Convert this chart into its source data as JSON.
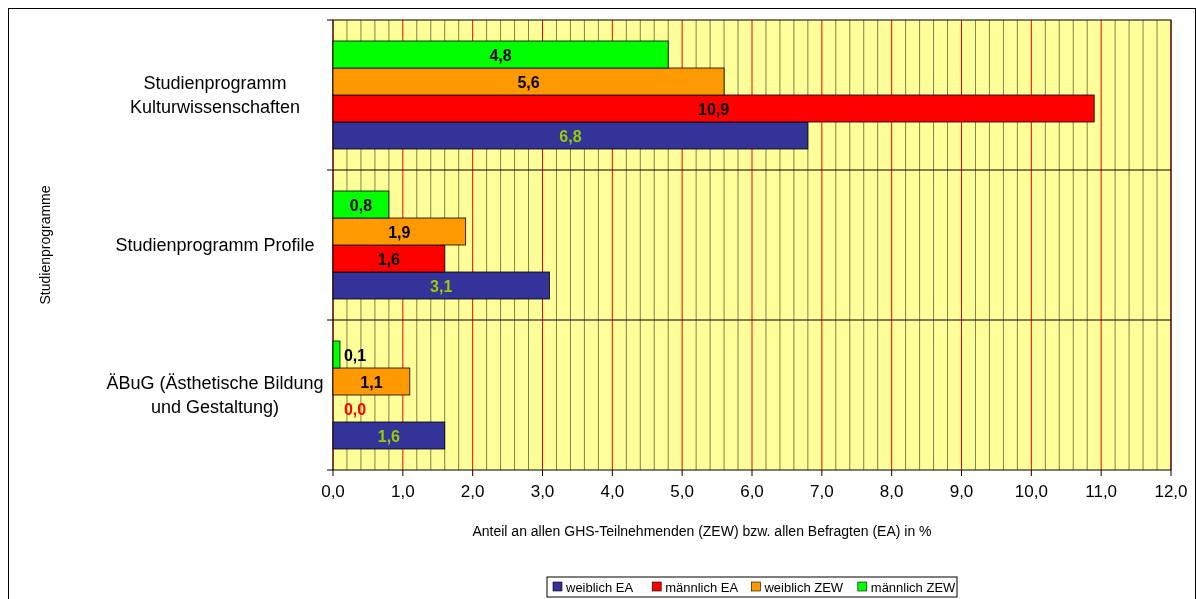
{
  "chart_data": {
    "type": "bar",
    "orientation": "horizontal",
    "ylabel": "Studienprogramme",
    "xlabel": "Anteil an allen GHS-Teilnehmenden (ZEW) bzw. allen Befragten (EA) in %",
    "categories": [
      "Studienprogramm\nKulturwissenschaften",
      "Studienprogramm Profile",
      "ÄBuG (Ästhetische Bildung\nund Gestaltung)"
    ],
    "series": [
      {
        "name": "weiblich EA",
        "color": "#333399",
        "values": [
          6.8,
          3.1,
          1.6
        ],
        "value_labels": [
          "6,8",
          "3,1",
          "1,6"
        ]
      },
      {
        "name": "männlich EA",
        "color": "#ff0000",
        "values": [
          10.9,
          1.6,
          0.0
        ],
        "value_labels": [
          "10,9",
          "1,6",
          "0,0"
        ]
      },
      {
        "name": "weiblich ZEW",
        "color": "#ff9900",
        "values": [
          5.6,
          1.9,
          1.1
        ],
        "value_labels": [
          "5,6",
          "1,9",
          "1,1"
        ]
      },
      {
        "name": "männlich ZEW",
        "color": "#00ff00",
        "values": [
          4.8,
          0.8,
          0.1
        ],
        "value_labels": [
          "4,8",
          "0,8",
          "0,1"
        ]
      }
    ],
    "xlim": [
      0,
      12
    ],
    "xticks": [
      {
        "value": 0,
        "label": "0,0"
      },
      {
        "value": 1,
        "label": "1,0"
      },
      {
        "value": 2,
        "label": "2,0"
      },
      {
        "value": 3,
        "label": "3,0"
      },
      {
        "value": 4,
        "label": "4,0"
      },
      {
        "value": 5,
        "label": "5,0"
      },
      {
        "value": 6,
        "label": "6,0"
      },
      {
        "value": 7,
        "label": "7,0"
      },
      {
        "value": 8,
        "label": "8,0"
      },
      {
        "value": 9,
        "label": "9,0"
      },
      {
        "value": 10,
        "label": "10,0"
      },
      {
        "value": 11,
        "label": "11,0"
      },
      {
        "value": 12,
        "label": "12,0"
      }
    ],
    "grid": "x",
    "legend": "bottom"
  }
}
